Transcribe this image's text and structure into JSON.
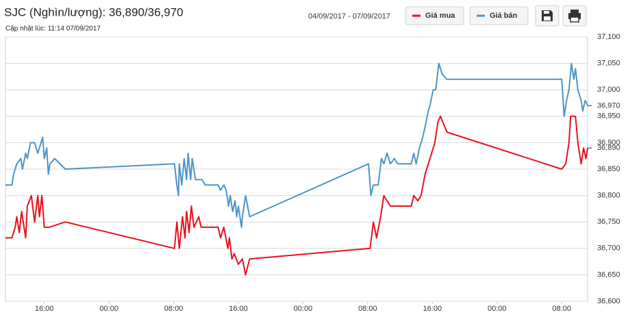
{
  "chart_data": {
    "type": "line",
    "title": "SJC (Nghìn/lượng): 36,890/36,970",
    "subtitle": "Cập nhật lúc: 11:14 07/09/2017",
    "date_range": "04/09/2017 - 07/09/2017",
    "xlim": [
      11.2,
      83.2
    ],
    "xticks": [
      {
        "value": 16,
        "label": "16:00"
      },
      {
        "value": 24,
        "label": "00:00"
      },
      {
        "value": 32,
        "label": "08:00"
      },
      {
        "value": 40,
        "label": "16:00"
      },
      {
        "value": 48,
        "label": "00:00"
      },
      {
        "value": 56,
        "label": "08:00"
      },
      {
        "value": 64,
        "label": "16:00"
      },
      {
        "value": 72,
        "label": "00:00"
      },
      {
        "value": 80,
        "label": "08:00"
      }
    ],
    "ylim": [
      36600,
      37100
    ],
    "yticks": [
      {
        "value": 36600,
        "label": "36,600"
      },
      {
        "value": 36650,
        "label": "36,650"
      },
      {
        "value": 36700,
        "label": "36,700"
      },
      {
        "value": 36750,
        "label": "36,750"
      },
      {
        "value": 36800,
        "label": "36,800"
      },
      {
        "value": 36850,
        "label": "36,850"
      },
      {
        "value": 36900,
        "label": "36,900"
      },
      {
        "value": 36950,
        "label": "36,950"
      },
      {
        "value": 37000,
        "label": "37,000"
      },
      {
        "value": 37050,
        "label": "37,050"
      },
      {
        "value": 37100,
        "label": "37,100"
      }
    ],
    "grid": true,
    "price_labels": [
      {
        "value": 36970,
        "label": "36,970"
      },
      {
        "value": 36890,
        "label": "36,890"
      }
    ],
    "series": [
      {
        "name": "Giá mua",
        "color": "#e8101a",
        "x": [
          11.2,
          12.0,
          12.4,
          12.6,
          12.9,
          13.2,
          13.7,
          13.9,
          14.4,
          14.8,
          15.2,
          15.4,
          15.7,
          16.0,
          16.6,
          18.6,
          32.1,
          32.4,
          32.7,
          33.1,
          33.4,
          33.6,
          33.9,
          34.2,
          34.5,
          35.1,
          35.4,
          37.5,
          37.8,
          38.2,
          38.7,
          38.9,
          39.2,
          39.5,
          40.0,
          40.5,
          40.9,
          41.4,
          56.3,
          56.7,
          57.1,
          57.6,
          58.0,
          58.8,
          61.4,
          61.7,
          62.2,
          62.6,
          63.1,
          63.5,
          63.9,
          64.3,
          64.7,
          65.0,
          65.8,
          80.0,
          80.5,
          80.9,
          81.1,
          81.7,
          82.0,
          82.4,
          82.7,
          83.0,
          83.2
        ],
        "values": [
          36720,
          36720,
          36740,
          36760,
          36730,
          36770,
          36720,
          36780,
          36800,
          36750,
          36800,
          36760,
          36800,
          36740,
          36740,
          36750,
          36700,
          36750,
          36700,
          36760,
          36720,
          36770,
          36730,
          36780,
          36740,
          36760,
          36740,
          36740,
          36720,
          36740,
          36700,
          36720,
          36680,
          36690,
          36670,
          36680,
          36650,
          36680,
          36700,
          36750,
          36720,
          36760,
          36800,
          36780,
          36780,
          36800,
          36790,
          36800,
          36840,
          36860,
          36880,
          36900,
          36940,
          36950,
          36920,
          36850,
          36860,
          36900,
          36950,
          36950,
          36900,
          36860,
          36890,
          36870,
          36890
        ]
      },
      {
        "name": "Giá bán",
        "color": "#4b94c6",
        "x": [
          11.2,
          12.0,
          12.2,
          12.6,
          13.1,
          13.3,
          13.7,
          13.9,
          14.3,
          14.8,
          15.2,
          15.8,
          16.0,
          16.3,
          16.5,
          16.7,
          17.3,
          18.6,
          32.1,
          32.4,
          32.6,
          32.7,
          33.0,
          33.3,
          33.6,
          33.8,
          34.1,
          34.3,
          34.7,
          35.5,
          35.9,
          37.5,
          37.8,
          38.2,
          38.5,
          38.8,
          39.0,
          39.3,
          39.6,
          39.8,
          40.0,
          40.4,
          40.5,
          40.9,
          41.4,
          56.1,
          56.4,
          56.7,
          57.3,
          57.7,
          58.0,
          58.4,
          58.8,
          59.3,
          59.7,
          61.4,
          61.7,
          62.0,
          62.4,
          62.8,
          63.1,
          63.5,
          63.7,
          64.1,
          64.4,
          64.8,
          65.2,
          65.8,
          80.0,
          80.3,
          80.6,
          80.9,
          81.2,
          81.5,
          81.7,
          82.0,
          82.4,
          82.6,
          82.9,
          83.2
        ],
        "values": [
          36820,
          36820,
          36840,
          36860,
          36870,
          36850,
          36880,
          36870,
          36900,
          36900,
          36880,
          36910,
          36870,
          36890,
          36840,
          36860,
          36870,
          36850,
          36860,
          36820,
          36800,
          36860,
          36820,
          36870,
          36830,
          36880,
          36830,
          36870,
          36830,
          36830,
          36820,
          36820,
          36810,
          36820,
          36810,
          36780,
          36800,
          36770,
          36790,
          36760,
          36780,
          36740,
          36760,
          36800,
          36760,
          36860,
          36800,
          36820,
          36820,
          36870,
          36860,
          36880,
          36860,
          36870,
          36860,
          36860,
          36880,
          36860,
          36890,
          36910,
          36930,
          36960,
          36970,
          37000,
          37000,
          37050,
          37030,
          37020,
          37020,
          36950,
          36980,
          37000,
          37050,
          37020,
          37040,
          37000,
          36980,
          36960,
          36980,
          36970
        ]
      }
    ]
  }
}
